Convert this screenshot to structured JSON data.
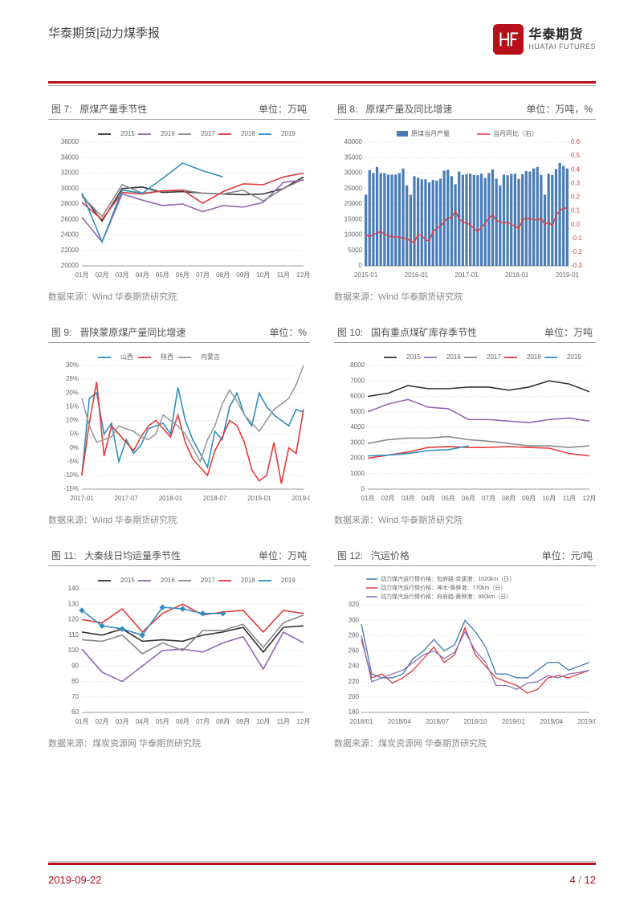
{
  "header": {
    "title": "华泰期货|动力煤季报",
    "logo_cn": "华泰期货",
    "logo_en": "HUATAI FUTURES"
  },
  "footer": {
    "date": "2019-09-22",
    "page": "4",
    "total": "12"
  },
  "colors": {
    "red": "#b7101a",
    "accent_2015": "#333333",
    "accent_2016": "#9068b5",
    "accent_2017": "#8a8a8a",
    "accent_2018": "#e33a3a",
    "accent_2019": "#2f8fbf",
    "bar_blue": "#4a7db8",
    "line_red": "#e33a3a",
    "sx_blue": "#2f8fbf",
    "sx_red": "#e33a3a",
    "sx_grey": "#9a9a9a",
    "fr_blue": "#3b78b0",
    "fr_red": "#e33a3a",
    "fr_purple": "#8572b8",
    "grid": "#e8e8e8",
    "axis": "#666666"
  },
  "charts": {
    "c7": {
      "num": "图 7:",
      "title": "原煤产量季节性",
      "unit": "单位：万吨",
      "source": "数据来源：Wind 华泰期货研究院",
      "y": {
        "min": 20000,
        "max": 36000,
        "step": 2000
      },
      "x": [
        "01月",
        "02月",
        "03月",
        "04月",
        "05月",
        "06月",
        "07月",
        "08月",
        "09月",
        "10月",
        "11月",
        "12月"
      ],
      "legend": [
        "2015",
        "2016",
        "2017",
        "2018",
        "2019"
      ],
      "series": {
        "2015": [
          29200,
          25800,
          30000,
          30200,
          29500,
          29600,
          29400,
          29300,
          29200,
          29300,
          30000,
          31500
        ],
        "2016": [
          26300,
          23100,
          29300,
          28500,
          27800,
          28000,
          27000,
          27800,
          27600,
          28200,
          30800,
          31100
        ],
        "2017": [
          29000,
          26400,
          30500,
          29400,
          29700,
          29800,
          29400,
          29300,
          29800,
          28400,
          30000,
          31200
        ],
        "2018": [
          28200,
          26000,
          29500,
          29300,
          29700,
          29800,
          28100,
          29600,
          30600,
          30500,
          31500,
          32000
        ],
        "2019": [
          29400,
          23100,
          29800,
          29400,
          31300,
          33300,
          32300,
          31500
        ]
      }
    },
    "c8": {
      "num": "图 8:",
      "title": "原煤产量及同比增速",
      "unit": "单位：万吨，%",
      "source": "数据来源：Wind 华泰期货研究院",
      "yL": {
        "min": 0,
        "max": 40000,
        "step": 5000
      },
      "yR": {
        "min": -0.3,
        "max": 0.6,
        "step": 0.1
      },
      "x": [
        "2015-01",
        "2016-01",
        "2017-01",
        "2018-01",
        "2019-01"
      ],
      "bars": [
        23000,
        31000,
        30000,
        32000,
        30000,
        30000,
        29500,
        29500,
        29500,
        30000,
        31500,
        26000,
        23000,
        29000,
        28500,
        28000,
        28000,
        27000,
        27800,
        27600,
        28200,
        30800,
        31100,
        29000,
        26400,
        30500,
        29400,
        29700,
        29800,
        29400,
        29300,
        29800,
        28400,
        30000,
        31200,
        28200,
        26000,
        29500,
        29300,
        29700,
        29800,
        28100,
        29600,
        30600,
        30500,
        31500,
        32000,
        29400,
        23000,
        29800,
        29400,
        31300,
        33300,
        32300,
        31500
      ],
      "line": [
        -0.07,
        -0.09,
        -0.07,
        -0.06,
        -0.05,
        -0.07,
        -0.08,
        -0.09,
        -0.09,
        -0.09,
        -0.1,
        -0.1,
        -0.12,
        -0.13,
        -0.07,
        -0.08,
        -0.11,
        -0.12,
        -0.05,
        -0.03,
        -0.01,
        0.02,
        0.05,
        0.05,
        0.1,
        0.04,
        0.02,
        0.01,
        0.0,
        -0.03,
        -0.05,
        -0.02,
        0.01,
        0.05,
        0.07,
        0.03,
        0.02,
        0.01,
        0.02,
        0.0,
        -0.01,
        -0.03,
        0.03,
        0.05,
        0.04,
        0.04,
        0.03,
        0.05,
        0.0,
        0.02,
        -0.01,
        0.07,
        0.1,
        0.12,
        0.12
      ]
    },
    "c9": {
      "num": "图 9:",
      "title": "晋陕蒙原煤产量同比增速",
      "unit": "单位：%",
      "source": "数据来源：Wind 华泰期货研究院",
      "y": {
        "min": -15,
        "max": 30,
        "step": 5
      },
      "x": [
        "2017-01",
        "2017-07",
        "2018-01",
        "2018-07",
        "2019-01",
        "2019-07"
      ],
      "legend": [
        "山西",
        "陕西",
        "内蒙古"
      ],
      "series": {
        "sx": [
          -10,
          18,
          20,
          5,
          9,
          -5,
          3,
          -2,
          1,
          7,
          8,
          9,
          5,
          22,
          10,
          3,
          -2,
          -7,
          6,
          3,
          15,
          20,
          12,
          8,
          20,
          15,
          12,
          10,
          8,
          14,
          13
        ],
        "shx": [
          -10,
          9,
          24,
          -3,
          8,
          5,
          2,
          -1,
          4,
          8,
          10,
          7,
          4,
          12,
          2,
          -4,
          -7,
          -10,
          -1,
          4,
          10,
          8,
          2,
          -8,
          -12,
          -10,
          2,
          -13,
          0,
          -2,
          14
        ],
        "nmg": [
          18,
          8,
          2,
          3,
          4,
          8,
          7,
          6,
          4,
          3,
          5,
          12,
          10,
          8,
          5,
          0,
          -5,
          3,
          8,
          16,
          21,
          17,
          12,
          9,
          6,
          10,
          14,
          16,
          18,
          23,
          30
        ]
      }
    },
    "c10": {
      "num": "图 10:",
      "title": "国有重点煤矿库存季节性",
      "unit": "单位：万吨",
      "source": "数据来源：Wind 华泰期货研究院",
      "y": {
        "min": 0,
        "max": 8000,
        "step": 1000
      },
      "x": [
        "01月",
        "02月",
        "03月",
        "04月",
        "05月",
        "06月",
        "07月",
        "08月",
        "09月",
        "10月",
        "11月",
        "12月"
      ],
      "legend": [
        "2015",
        "2016",
        "2017",
        "2018",
        "2019"
      ],
      "series": {
        "2015": [
          6000,
          6200,
          6700,
          6500,
          6500,
          6600,
          6600,
          6400,
          6600,
          7000,
          6800,
          6300
        ],
        "2016": [
          5000,
          5500,
          5800,
          5300,
          5200,
          4500,
          4500,
          4400,
          4300,
          4500,
          4600,
          4400
        ],
        "2017": [
          2950,
          3200,
          3300,
          3300,
          3400,
          3200,
          3100,
          2950,
          2800,
          2800,
          2700,
          2800
        ],
        "2018": [
          2000,
          2200,
          2400,
          2700,
          2750,
          2700,
          2700,
          2750,
          2700,
          2650,
          2300,
          2150
        ],
        "2019": [
          2150,
          2200,
          2300,
          2500,
          2550,
          2800
        ]
      }
    },
    "c11": {
      "num": "图 11:",
      "title": "大秦线日均运量季节性",
      "unit": "单位：万吨",
      "source": "数据来源：煤炭资源网 华泰期货研究院",
      "y": {
        "min": 60,
        "max": 140,
        "step": 10
      },
      "x": [
        "01月",
        "02月",
        "03月",
        "04月",
        "05月",
        "06月",
        "07月",
        "08月",
        "09月",
        "10月",
        "11月",
        "12月"
      ],
      "legend": [
        "2015",
        "2016",
        "2017",
        "2018",
        "2019"
      ],
      "series": {
        "2015": [
          112,
          110,
          114,
          106,
          107,
          106,
          110,
          112,
          115,
          99,
          115,
          116
        ],
        "2016": [
          101,
          86,
          80,
          90,
          100,
          101,
          99,
          105,
          109,
          88,
          112,
          105
        ],
        "2017": [
          107,
          106,
          110,
          98,
          105,
          100,
          113,
          113,
          117,
          102,
          118,
          123
        ],
        "2018": [
          120,
          118,
          127,
          112,
          124,
          130,
          123,
          125,
          126,
          112,
          126,
          124
        ],
        "2019": [
          126,
          116,
          114,
          110,
          128,
          127,
          124,
          124
        ]
      }
    },
    "c12": {
      "num": "图 12:",
      "title": "汽运价格",
      "unit": "单位：元/吨",
      "source": "数据来源：煤炭资源网 华泰期货研究院",
      "y": {
        "min": 180,
        "max": 320,
        "step": 20
      },
      "x": [
        "2018/01",
        "2018/04",
        "2018/07",
        "2018/10",
        "2019/01",
        "2019/04",
        "2019/07"
      ],
      "legend": [
        "动力煤汽运行情价格：包府路-京唐港：1020km（日）",
        "动力煤汽运行情价格：神木-黄骅港：770km（日）",
        "动力煤汽运行情价格：府府路-黄骅港：960km（日）"
      ],
      "series": {
        "a": [
          295,
          230,
          225,
          225,
          230,
          250,
          260,
          275,
          260,
          268,
          300,
          285,
          265,
          230,
          230,
          225,
          225,
          235,
          245,
          245,
          235,
          240,
          245
        ],
        "b": [
          275,
          225,
          230,
          218,
          225,
          235,
          250,
          265,
          245,
          255,
          290,
          255,
          240,
          225,
          220,
          215,
          205,
          210,
          225,
          228,
          225,
          230,
          235
        ],
        "c": [
          280,
          220,
          225,
          230,
          235,
          245,
          255,
          260,
          250,
          258,
          285,
          260,
          245,
          215,
          215,
          210,
          218,
          220,
          228,
          225,
          230,
          232,
          235
        ]
      }
    }
  }
}
